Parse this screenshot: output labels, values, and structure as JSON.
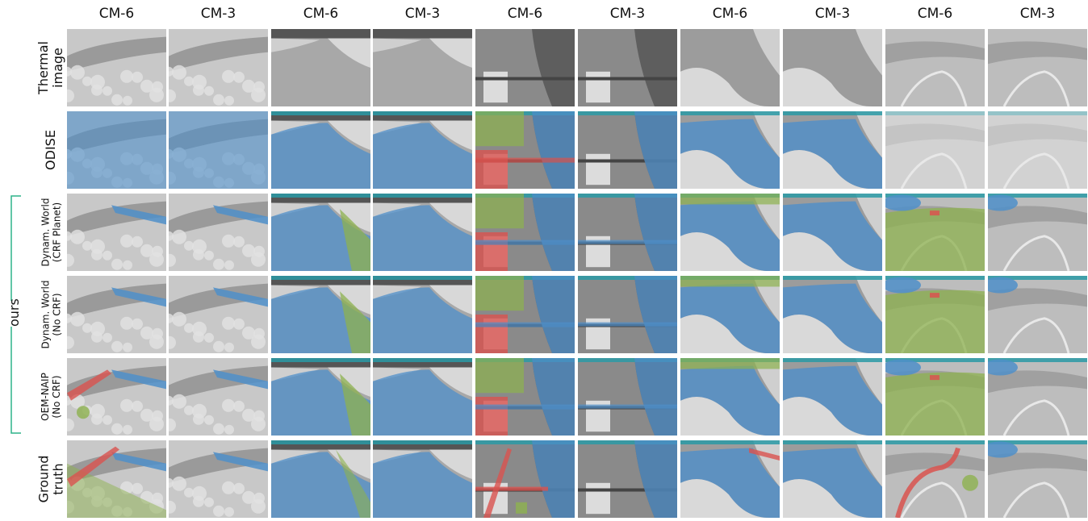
{
  "figure": {
    "column_headers": [
      "CM-6",
      "CM-3",
      "CM-6",
      "CM-3",
      "CM-6",
      "CM-3",
      "CM-6",
      "CM-3",
      "CM-6",
      "CM-3"
    ],
    "row_labels": [
      {
        "text": "Thermal\nimage"
      },
      {
        "text": "ODISE"
      },
      {
        "text": "Dynam. World\n(CRF Planet)"
      },
      {
        "text": "Dynam. World\n(No CRF)"
      },
      {
        "text": "OEM-NAIP\n(No CRF)"
      },
      {
        "text": "Ground\ntruth"
      }
    ],
    "bracket_label": "ours",
    "colors": {
      "water": "#4f8fc9",
      "vegetation": "#8db24f",
      "built": "#d9534f",
      "sky": "#2a9aa6",
      "terrain": "#d9d9d9",
      "bracket": "#2db38a"
    }
  }
}
